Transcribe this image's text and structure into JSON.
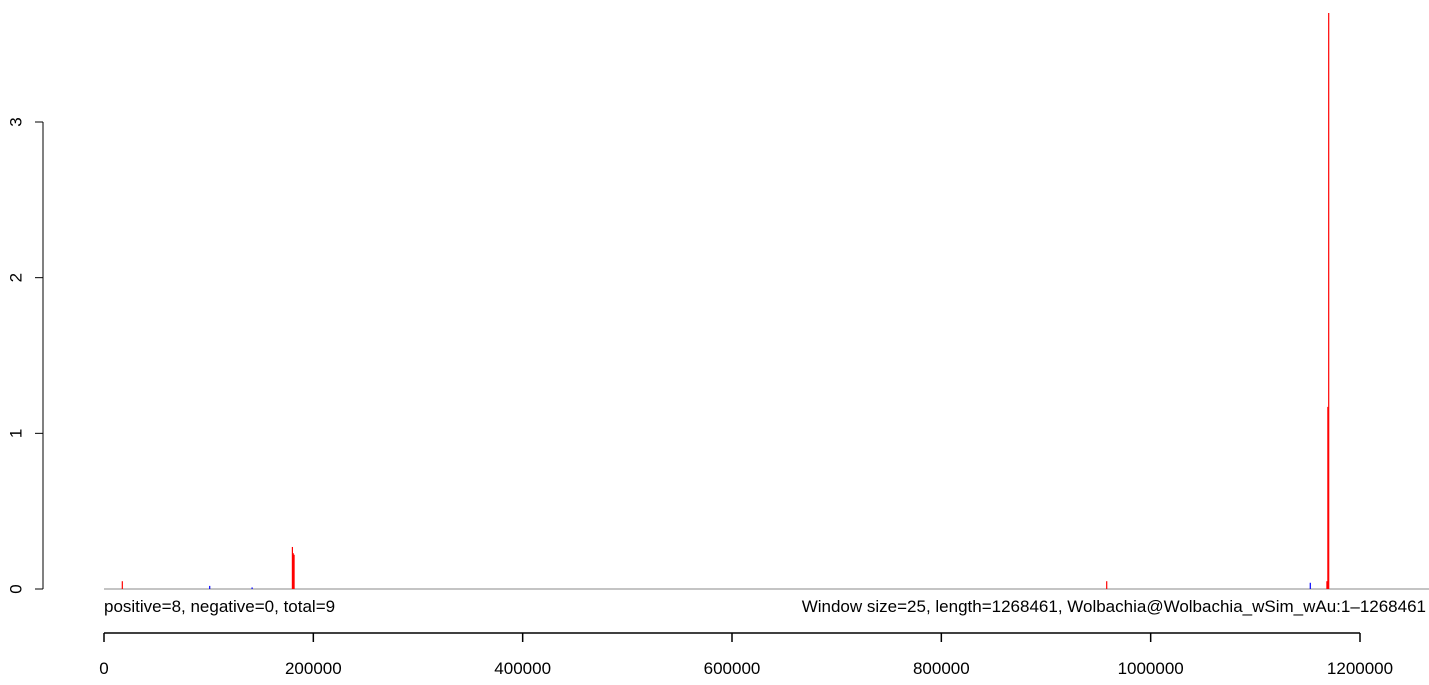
{
  "chart_data": {
    "type": "bar",
    "xlim": [
      0,
      1268461
    ],
    "ylim": [
      0,
      3.7
    ],
    "x_ticks": [
      0,
      200000,
      400000,
      600000,
      800000,
      1000000,
      1200000
    ],
    "x_tick_labels": [
      "0",
      "200000",
      "400000",
      "600000",
      "800000",
      "1000000",
      "1200000"
    ],
    "y_ticks": [
      0,
      1,
      2,
      3
    ],
    "y_tick_labels": [
      "0",
      "1",
      "2",
      "3"
    ],
    "series": [
      {
        "color": "#ff0000",
        "points": [
          {
            "x": 17500,
            "y": 0.05
          },
          {
            "x": 180000,
            "y": 0.27
          },
          {
            "x": 180800,
            "y": 0.23
          },
          {
            "x": 181600,
            "y": 0.22
          },
          {
            "x": 958000,
            "y": 0.05
          },
          {
            "x": 1168400,
            "y": 0.05
          },
          {
            "x": 1169300,
            "y": 1.17
          },
          {
            "x": 1170100,
            "y": 3.7
          }
        ]
      },
      {
        "color": "#0000ff",
        "points": [
          {
            "x": 101000,
            "y": 0.02
          },
          {
            "x": 141500,
            "y": 0.01
          },
          {
            "x": 1152500,
            "y": 0.04
          }
        ]
      }
    ],
    "annotations": {
      "left": "positive=8, negative=0, total=9",
      "right": "Window size=25, length=1268461, Wolbachia@Wolbachia_wSim_wAu:1–1268461"
    },
    "title": "",
    "xlabel": "",
    "ylabel": ""
  }
}
